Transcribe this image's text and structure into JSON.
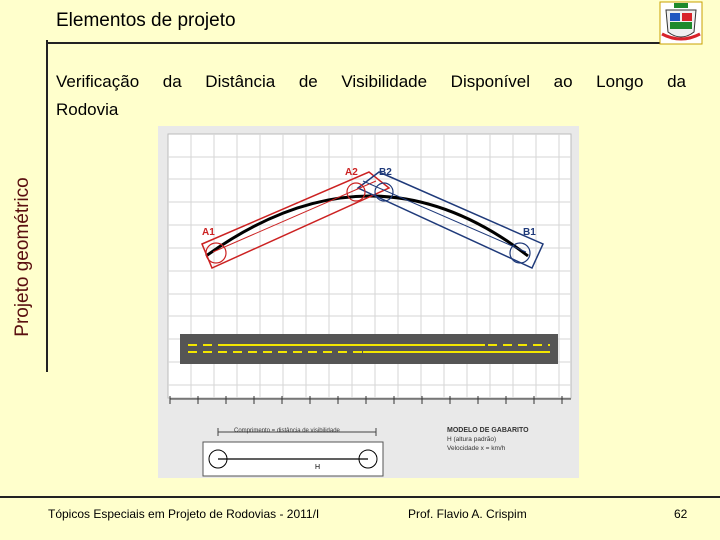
{
  "header": {
    "title": "Elementos de projeto"
  },
  "sidebar": {
    "label": "Projeto geométrico"
  },
  "content": {
    "line1": "Verificação da Distância de Visibilidade Disponível ao Longo da",
    "line2": "Rodovia"
  },
  "figure": {
    "labels": {
      "a1": "A1",
      "a2": "A2",
      "b1": "B1",
      "b2": "B2",
      "h": "H"
    },
    "dimension_text": "Comprimento = distância de visibilidade",
    "legend_title": "MODELO DE GABARITO",
    "legend_line1": "H (altura padrão)",
    "legend_line2": "Velocidade x = km/h",
    "colors": {
      "red": "#cc2222",
      "blue": "#1f3a7a",
      "road": "#555555",
      "yellow": "#f2e600"
    }
  },
  "footer": {
    "course": "Tópicos Especiais em Projeto de Rodovias - 2011/I",
    "professor": "Prof. Flavio  A. Crispim",
    "page": "62"
  }
}
